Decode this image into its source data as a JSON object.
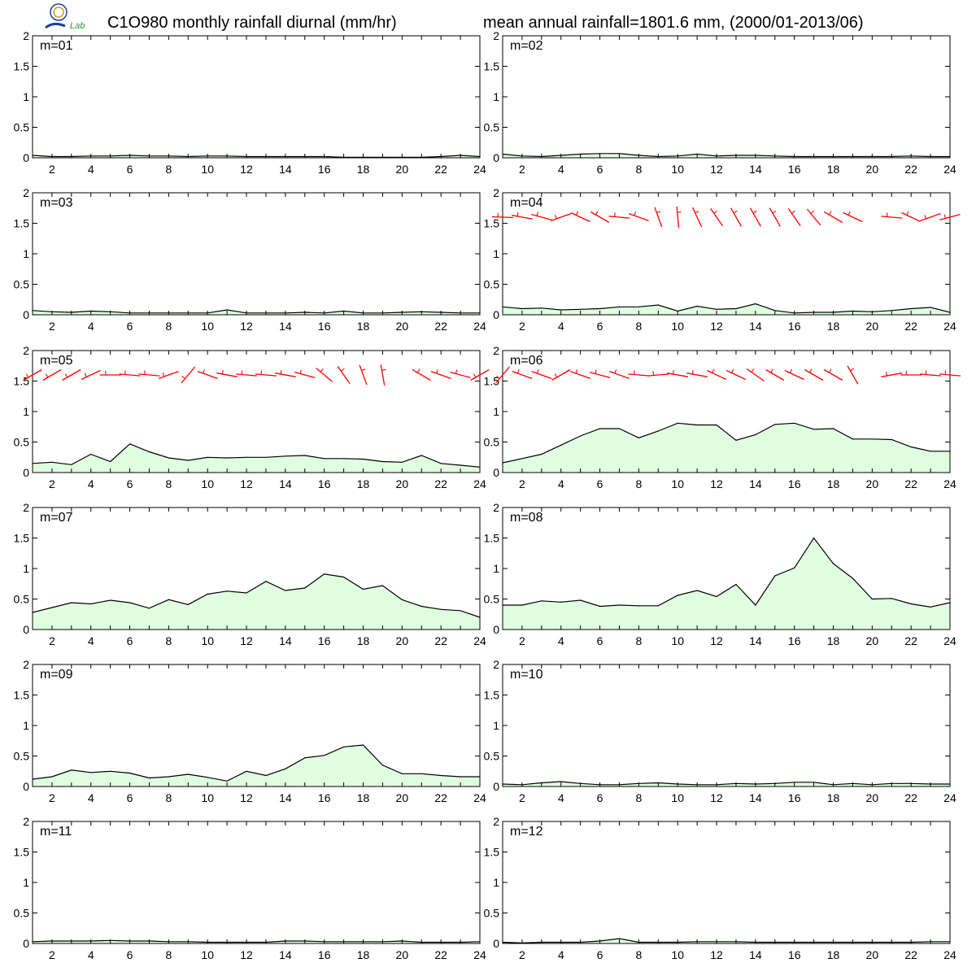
{
  "header": {
    "title_left": "C1O980 monthly rainfall diurnal (mm/hr)",
    "title_right": "mean annual rainfall=1801.6 mm, (2000/01-2013/06)"
  },
  "logo": {
    "name": "lab-logo",
    "text": "Lab",
    "colors": [
      "#1f3f9f",
      "#d4a017",
      "#2a9d2a"
    ]
  },
  "colors": {
    "rain_fill": "#e0ffe0",
    "rain_line": "#000000",
    "wind_barb": "#ff0000"
  },
  "chart_data": [
    {
      "type": "area",
      "label": "m=01",
      "x": [
        1,
        2,
        3,
        4,
        5,
        6,
        7,
        8,
        9,
        10,
        11,
        12,
        13,
        14,
        15,
        16,
        17,
        18,
        19,
        20,
        21,
        22,
        23,
        24
      ],
      "values": [
        0.04,
        0.02,
        0.02,
        0.03,
        0.03,
        0.04,
        0.03,
        0.03,
        0.02,
        0.03,
        0.03,
        0.02,
        0.02,
        0.02,
        0.02,
        0.02,
        0.01,
        0.01,
        0.01,
        0.01,
        0.01,
        0.02,
        0.04,
        0.02
      ],
      "ylim": [
        0,
        2
      ],
      "xlim": [
        1,
        24
      ],
      "yticks": [
        0,
        0.5,
        1,
        1.5,
        2
      ],
      "xticks": [
        2,
        4,
        6,
        8,
        10,
        12,
        14,
        16,
        18,
        20,
        22,
        24
      ]
    },
    {
      "type": "area",
      "label": "m=02",
      "x": [
        1,
        2,
        3,
        4,
        5,
        6,
        7,
        8,
        9,
        10,
        11,
        12,
        13,
        14,
        15,
        16,
        17,
        18,
        19,
        20,
        21,
        22,
        23,
        24
      ],
      "values": [
        0.06,
        0.03,
        0.02,
        0.04,
        0.06,
        0.07,
        0.07,
        0.04,
        0.02,
        0.03,
        0.06,
        0.03,
        0.04,
        0.04,
        0.03,
        0.02,
        0.02,
        0.02,
        0.02,
        0.02,
        0.02,
        0.03,
        0.02,
        0.02
      ],
      "ylim": [
        0,
        2
      ],
      "xlim": [
        1,
        24
      ],
      "yticks": [
        0,
        0.5,
        1,
        1.5,
        2
      ],
      "xticks": [
        2,
        4,
        6,
        8,
        10,
        12,
        14,
        16,
        18,
        20,
        22,
        24
      ]
    },
    {
      "type": "area",
      "label": "m=03",
      "x": [
        1,
        2,
        3,
        4,
        5,
        6,
        7,
        8,
        9,
        10,
        11,
        12,
        13,
        14,
        15,
        16,
        17,
        18,
        19,
        20,
        21,
        22,
        23,
        24
      ],
      "values": [
        0.07,
        0.05,
        0.04,
        0.06,
        0.05,
        0.03,
        0.03,
        0.03,
        0.03,
        0.03,
        0.08,
        0.03,
        0.03,
        0.03,
        0.04,
        0.03,
        0.06,
        0.03,
        0.03,
        0.04,
        0.05,
        0.04,
        0.03,
        0.03
      ],
      "ylim": [
        0,
        2
      ],
      "xlim": [
        1,
        24
      ],
      "yticks": [
        0,
        0.5,
        1,
        1.5,
        2
      ],
      "xticks": [
        2,
        4,
        6,
        8,
        10,
        12,
        14,
        16,
        18,
        20,
        22,
        24
      ]
    },
    {
      "type": "area",
      "label": "m=04",
      "x": [
        1,
        2,
        3,
        4,
        5,
        6,
        7,
        8,
        9,
        10,
        11,
        12,
        13,
        14,
        15,
        16,
        17,
        18,
        19,
        20,
        21,
        22,
        23,
        24
      ],
      "values": [
        0.13,
        0.1,
        0.11,
        0.08,
        0.09,
        0.1,
        0.13,
        0.13,
        0.16,
        0.06,
        0.14,
        0.09,
        0.1,
        0.18,
        0.07,
        0.03,
        0.04,
        0.04,
        0.06,
        0.05,
        0.07,
        0.1,
        0.12,
        0.04
      ],
      "ylim": [
        0,
        2
      ],
      "xlim": [
        1,
        24
      ],
      "yticks": [
        0,
        0.5,
        1,
        1.5,
        2
      ],
      "xticks": [
        2,
        4,
        6,
        8,
        10,
        12,
        14,
        16,
        18,
        20,
        22,
        24
      ]
    },
    {
      "type": "area",
      "label": "m=05",
      "x": [
        1,
        2,
        3,
        4,
        5,
        6,
        7,
        8,
        9,
        10,
        11,
        12,
        13,
        14,
        15,
        16,
        17,
        18,
        19,
        20,
        21,
        22,
        23,
        24
      ],
      "values": [
        0.15,
        0.17,
        0.13,
        0.3,
        0.18,
        0.47,
        0.34,
        0.24,
        0.2,
        0.25,
        0.24,
        0.25,
        0.25,
        0.27,
        0.28,
        0.23,
        0.23,
        0.22,
        0.18,
        0.17,
        0.28,
        0.15,
        0.12,
        0.09
      ],
      "ylim": [
        0,
        2
      ],
      "xlim": [
        1,
        24
      ],
      "yticks": [
        0,
        0.5,
        1,
        1.5,
        2
      ],
      "xticks": [
        2,
        4,
        6,
        8,
        10,
        12,
        14,
        16,
        18,
        20,
        22,
        24
      ]
    },
    {
      "type": "area",
      "label": "m=06",
      "x": [
        1,
        2,
        3,
        4,
        5,
        6,
        7,
        8,
        9,
        10,
        11,
        12,
        13,
        14,
        15,
        16,
        17,
        18,
        19,
        20,
        21,
        22,
        23,
        24
      ],
      "values": [
        0.16,
        0.23,
        0.3,
        0.45,
        0.6,
        0.72,
        0.72,
        0.57,
        0.68,
        0.81,
        0.78,
        0.78,
        0.53,
        0.62,
        0.79,
        0.81,
        0.71,
        0.72,
        0.55,
        0.55,
        0.54,
        0.42,
        0.35,
        0.35
      ],
      "ylim": [
        0,
        2
      ],
      "xlim": [
        1,
        24
      ],
      "yticks": [
        0,
        0.5,
        1,
        1.5,
        2
      ],
      "xticks": [
        2,
        4,
        6,
        8,
        10,
        12,
        14,
        16,
        18,
        20,
        22,
        24
      ]
    },
    {
      "type": "area",
      "label": "m=07",
      "x": [
        1,
        2,
        3,
        4,
        5,
        6,
        7,
        8,
        9,
        10,
        11,
        12,
        13,
        14,
        15,
        16,
        17,
        18,
        19,
        20,
        21,
        22,
        23,
        24
      ],
      "values": [
        0.28,
        0.36,
        0.44,
        0.42,
        0.48,
        0.44,
        0.35,
        0.49,
        0.41,
        0.58,
        0.63,
        0.6,
        0.79,
        0.64,
        0.68,
        0.91,
        0.86,
        0.66,
        0.72,
        0.49,
        0.38,
        0.33,
        0.31,
        0.2
      ],
      "ylim": [
        0,
        2
      ],
      "xlim": [
        1,
        24
      ],
      "yticks": [
        0,
        0.5,
        1,
        1.5,
        2
      ],
      "xticks": [
        2,
        4,
        6,
        8,
        10,
        12,
        14,
        16,
        18,
        20,
        22,
        24
      ]
    },
    {
      "type": "area",
      "label": "m=08",
      "x": [
        1,
        2,
        3,
        4,
        5,
        6,
        7,
        8,
        9,
        10,
        11,
        12,
        13,
        14,
        15,
        16,
        17,
        18,
        19,
        20,
        21,
        22,
        23,
        24
      ],
      "values": [
        0.4,
        0.4,
        0.47,
        0.45,
        0.48,
        0.38,
        0.4,
        0.39,
        0.39,
        0.56,
        0.64,
        0.54,
        0.74,
        0.4,
        0.88,
        1.01,
        1.5,
        1.08,
        0.84,
        0.5,
        0.51,
        0.42,
        0.37,
        0.44
      ],
      "ylim": [
        0,
        2
      ],
      "xlim": [
        1,
        24
      ],
      "yticks": [
        0,
        0.5,
        1,
        1.5,
        2
      ],
      "xticks": [
        2,
        4,
        6,
        8,
        10,
        12,
        14,
        16,
        18,
        20,
        22,
        24
      ]
    },
    {
      "type": "area",
      "label": "m=09",
      "x": [
        1,
        2,
        3,
        4,
        5,
        6,
        7,
        8,
        9,
        10,
        11,
        12,
        13,
        14,
        15,
        16,
        17,
        18,
        19,
        20,
        21,
        22,
        23,
        24
      ],
      "values": [
        0.12,
        0.16,
        0.27,
        0.23,
        0.25,
        0.22,
        0.14,
        0.16,
        0.2,
        0.15,
        0.09,
        0.25,
        0.18,
        0.29,
        0.47,
        0.51,
        0.65,
        0.68,
        0.35,
        0.21,
        0.21,
        0.18,
        0.16,
        0.16
      ],
      "ylim": [
        0,
        2
      ],
      "xlim": [
        1,
        24
      ],
      "yticks": [
        0,
        0.5,
        1,
        1.5,
        2
      ],
      "xticks": [
        2,
        4,
        6,
        8,
        10,
        12,
        14,
        16,
        18,
        20,
        22,
        24
      ]
    },
    {
      "type": "area",
      "label": "m=10",
      "x": [
        1,
        2,
        3,
        4,
        5,
        6,
        7,
        8,
        9,
        10,
        11,
        12,
        13,
        14,
        15,
        16,
        17,
        18,
        19,
        20,
        21,
        22,
        23,
        24
      ],
      "values": [
        0.04,
        0.03,
        0.06,
        0.08,
        0.05,
        0.03,
        0.03,
        0.05,
        0.06,
        0.04,
        0.03,
        0.03,
        0.05,
        0.04,
        0.05,
        0.07,
        0.07,
        0.03,
        0.05,
        0.03,
        0.05,
        0.05,
        0.04,
        0.04
      ],
      "ylim": [
        0,
        2
      ],
      "xlim": [
        1,
        24
      ],
      "yticks": [
        0,
        0.5,
        1,
        1.5,
        2
      ],
      "xticks": [
        2,
        4,
        6,
        8,
        10,
        12,
        14,
        16,
        18,
        20,
        22,
        24
      ]
    },
    {
      "type": "area",
      "label": "m=11",
      "x": [
        1,
        2,
        3,
        4,
        5,
        6,
        7,
        8,
        9,
        10,
        11,
        12,
        13,
        14,
        15,
        16,
        17,
        18,
        19,
        20,
        21,
        22,
        23,
        24
      ],
      "values": [
        0.03,
        0.04,
        0.04,
        0.04,
        0.05,
        0.04,
        0.04,
        0.03,
        0.03,
        0.02,
        0.02,
        0.02,
        0.02,
        0.04,
        0.04,
        0.03,
        0.03,
        0.03,
        0.03,
        0.04,
        0.02,
        0.02,
        0.02,
        0.03
      ],
      "ylim": [
        0,
        2
      ],
      "xlim": [
        1,
        24
      ],
      "yticks": [
        0,
        0.5,
        1,
        1.5,
        2
      ],
      "xticks": [
        2,
        4,
        6,
        8,
        10,
        12,
        14,
        16,
        18,
        20,
        22,
        24
      ]
    },
    {
      "type": "area",
      "label": "m=12",
      "x": [
        1,
        2,
        3,
        4,
        5,
        6,
        7,
        8,
        9,
        10,
        11,
        12,
        13,
        14,
        15,
        16,
        17,
        18,
        19,
        20,
        21,
        22,
        23,
        24
      ],
      "values": [
        0.02,
        0.01,
        0.02,
        0.02,
        0.02,
        0.04,
        0.08,
        0.02,
        0.02,
        0.02,
        0.03,
        0.03,
        0.03,
        0.02,
        0.02,
        0.02,
        0.02,
        0.02,
        0.02,
        0.02,
        0.02,
        0.02,
        0.03,
        0.03
      ],
      "ylim": [
        0,
        2
      ],
      "xlim": [
        1,
        24
      ],
      "yticks": [
        0,
        0.5,
        1,
        1.5,
        2
      ],
      "xticks": [
        2,
        4,
        6,
        8,
        10,
        12,
        14,
        16,
        18,
        20,
        22,
        24
      ]
    }
  ],
  "wind_barbs": {
    "m=04": {
      "x": [
        1,
        2,
        3,
        4,
        5,
        6,
        7,
        8,
        9,
        10,
        11,
        12,
        13,
        14,
        15,
        16,
        17,
        18,
        19,
        20,
        21,
        22,
        23,
        24
      ],
      "direction_deg": [
        92,
        100,
        105,
        70,
        115,
        120,
        95,
        110,
        160,
        175,
        155,
        145,
        150,
        150,
        150,
        145,
        140,
        120,
        115,
        null,
        95,
        115,
        70,
        75
      ],
      "level": 1.6
    },
    "m=05": {
      "x": [
        1,
        2,
        3,
        4,
        5,
        6,
        7,
        8,
        9,
        10,
        11,
        12,
        13,
        14,
        15,
        16,
        17,
        18,
        19,
        20,
        21,
        22,
        23,
        24
      ],
      "direction_deg": [
        60,
        60,
        60,
        65,
        90,
        95,
        95,
        70,
        40,
        110,
        100,
        95,
        95,
        100,
        105,
        130,
        145,
        160,
        170,
        null,
        120,
        110,
        105,
        60
      ],
      "level": 1.6
    },
    "m=06": {
      "x": [
        1,
        2,
        3,
        4,
        5,
        6,
        7,
        8,
        9,
        10,
        11,
        12,
        13,
        14,
        15,
        16,
        17,
        18,
        19,
        20,
        21,
        22,
        23,
        24
      ],
      "direction_deg": [
        40,
        110,
        110,
        60,
        110,
        105,
        110,
        95,
        85,
        100,
        100,
        115,
        115,
        125,
        120,
        115,
        120,
        120,
        150,
        null,
        80,
        90,
        95,
        95
      ],
      "level": 1.6
    }
  }
}
